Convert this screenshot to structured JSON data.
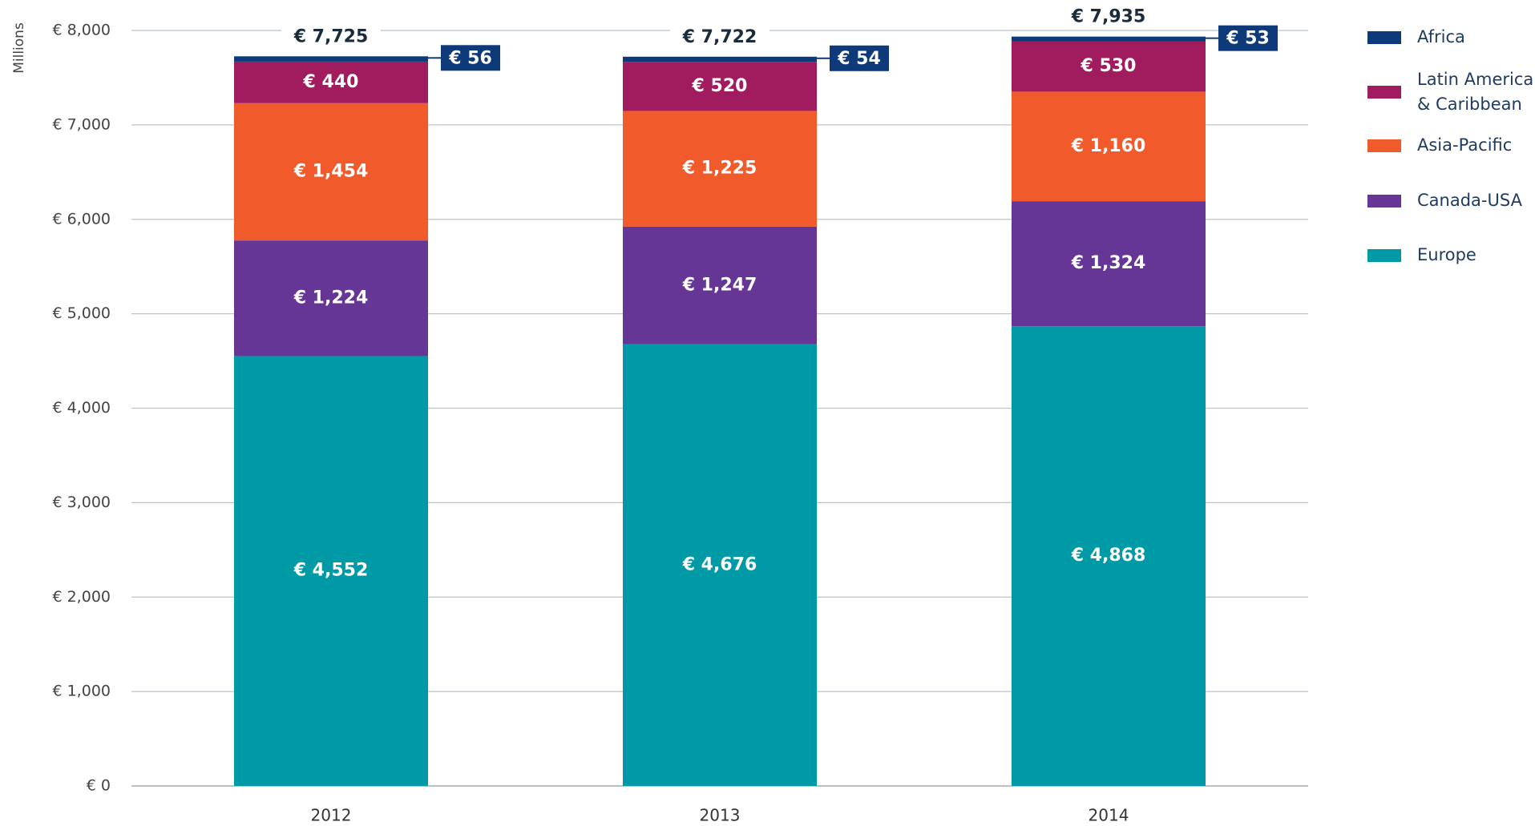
{
  "chart_data": {
    "type": "stacked_bar",
    "y_label": "Millions",
    "categories": [
      "2012",
      "2013",
      "2014"
    ],
    "series": [
      {
        "name": "Europe",
        "color": "#009aa6",
        "values": [
          4552,
          4676,
          4868
        ],
        "value_labels": [
          "€ 4,552",
          "€ 4,676",
          "€ 4,868"
        ]
      },
      {
        "name": "Canada-USA",
        "color": "#653696",
        "values": [
          1224,
          1247,
          1324
        ],
        "value_labels": [
          "€ 1,224",
          "€ 1,247",
          "€ 1,324"
        ]
      },
      {
        "name": "Asia-Pacific",
        "color": "#f15a2b",
        "values": [
          1454,
          1225,
          1160
        ],
        "value_labels": [
          "€ 1,454",
          "€ 1,225",
          "€ 1,160"
        ]
      },
      {
        "name": "Latin America & Caribbean",
        "color": "#a01c5f",
        "values": [
          440,
          520,
          530
        ],
        "value_labels": [
          "€ 440",
          "€ 520",
          "€ 530"
        ]
      },
      {
        "name": "Africa",
        "color": "#0e3a7a",
        "values": [
          56,
          54,
          53
        ],
        "value_labels": [
          "€ 56",
          "€ 54",
          "€ 53"
        ]
      }
    ],
    "totals": {
      "values": [
        7725,
        7722,
        7935
      ],
      "value_labels": [
        "€ 7,725",
        "€ 7,722",
        "€ 7,935"
      ]
    },
    "ylim": [
      0,
      8000
    ],
    "yticks": [
      {
        "value": 0,
        "label": "€ 0"
      },
      {
        "value": 1000,
        "label": "€ 1,000"
      },
      {
        "value": 2000,
        "label": "€ 2,000"
      },
      {
        "value": 3000,
        "label": "€ 3,000"
      },
      {
        "value": 4000,
        "label": "€ 4,000"
      },
      {
        "value": 5000,
        "label": "€ 5,000"
      },
      {
        "value": 6000,
        "label": "€ 6,000"
      },
      {
        "value": 7000,
        "label": "€ 7,000"
      },
      {
        "value": 8000,
        "label": "€ 8,000"
      }
    ],
    "grid": true,
    "legend": "right"
  }
}
